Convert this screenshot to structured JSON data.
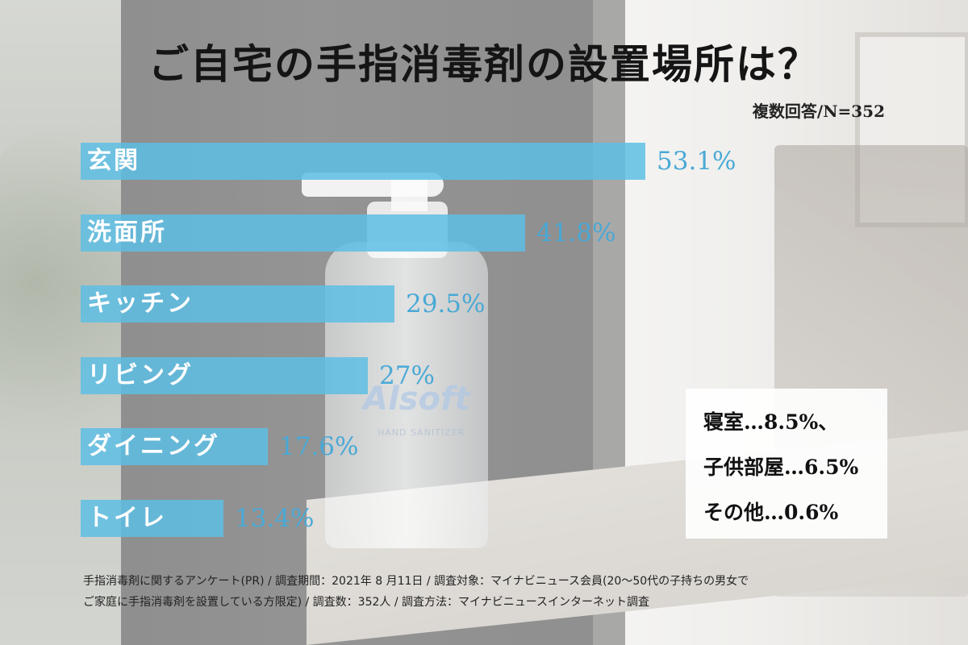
{
  "title": "ご自宅の手指消毒剤の設置場所は？",
  "subtitle": "複数回答/N=352",
  "chart_data": {
    "type": "bar",
    "orientation": "horizontal",
    "title": "ご自宅の手指消毒剤の設置場所は？",
    "note": "複数回答/N=352",
    "categories": [
      "玄関",
      "洗面所",
      "キッチン",
      "リビング",
      "ダイニング",
      "トイレ"
    ],
    "values": [
      53.1,
      41.8,
      29.5,
      27,
      17.6,
      13.4
    ],
    "value_labels": [
      "53.1%",
      "41.8%",
      "29.5%",
      "27%",
      "17.6%",
      "13.4%"
    ],
    "unit": "%",
    "bar_color": "#5ebee4",
    "xlim": [
      0,
      53.1
    ],
    "other_answers": [
      {
        "text": "寝室…8.5%、"
      },
      {
        "text": "子供部屋…6.5%"
      },
      {
        "text": "その他…0.6%"
      }
    ]
  },
  "footer": {
    "line1": "手指消毒剤に関するアンケート(PR) / 調査期間：2021年 8 月11日 / 調査対象：マイナビニュース会員(20〜50代の子持ちの男女で",
    "line2": "ご家庭に手指消毒剤を設置している方限定) / 調査数：352人 / 調査方法：マイナビニュースインターネット調査"
  },
  "background": {
    "brand": "Alsoft",
    "brand_sub": "HAND SANITIZER"
  }
}
